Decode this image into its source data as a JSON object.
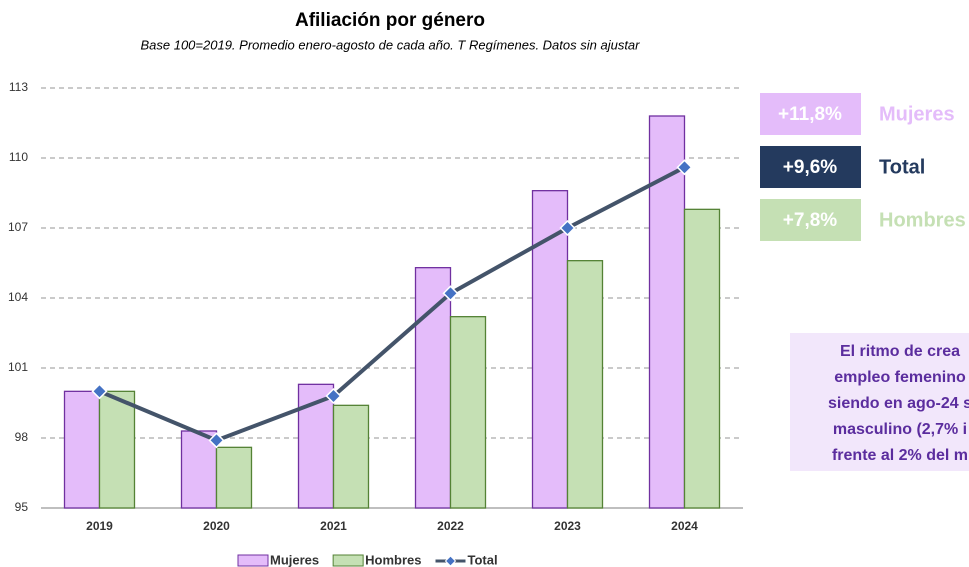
{
  "chart_data": {
    "type": "bar_line",
    "title": "Afiliación por género",
    "subtitle": "Base 100=2019. Promedio enero-agosto de cada año. T Regímenes. Datos sin ajustar",
    "categories": [
      "2019",
      "2020",
      "2021",
      "2022",
      "2023",
      "2024"
    ],
    "series": [
      {
        "name": "Mujeres",
        "type": "bar",
        "color": "#e4bcfa",
        "stroke": "#7030a0",
        "values": [
          100.0,
          98.3,
          100.3,
          105.3,
          108.6,
          111.8
        ]
      },
      {
        "name": "Hombres",
        "type": "bar",
        "color": "#c5e0b4",
        "stroke": "#548235",
        "values": [
          100.0,
          97.6,
          99.4,
          103.2,
          105.6,
          107.8
        ]
      },
      {
        "name": "Total",
        "type": "line",
        "color": "#44546a",
        "marker_color": "#4472c4",
        "values": [
          100.0,
          97.9,
          99.8,
          104.2,
          107.0,
          109.6
        ]
      }
    ],
    "ylim": [
      95,
      113
    ],
    "yticks": [
      95,
      98,
      101,
      104,
      107,
      110,
      113
    ],
    "grid": true,
    "legend": "bottom"
  },
  "badges": [
    {
      "value": "+11,8%",
      "label": "Mujeres",
      "bg": "#e4bcfa",
      "text": "#e4bcfa"
    },
    {
      "value": "+9,6%",
      "label": "Total",
      "bg": "#243a5e",
      "text": "#243a5e"
    },
    {
      "value": "+7,8%",
      "label": "Hombres",
      "bg": "#c5e0b4",
      "text": "#c5e0b4"
    }
  ],
  "note": [
    "El ritmo de crea",
    "empleo femenino",
    "siendo en ago-24 s",
    "masculino (2,7% i",
    "frente al 2% del m"
  ]
}
